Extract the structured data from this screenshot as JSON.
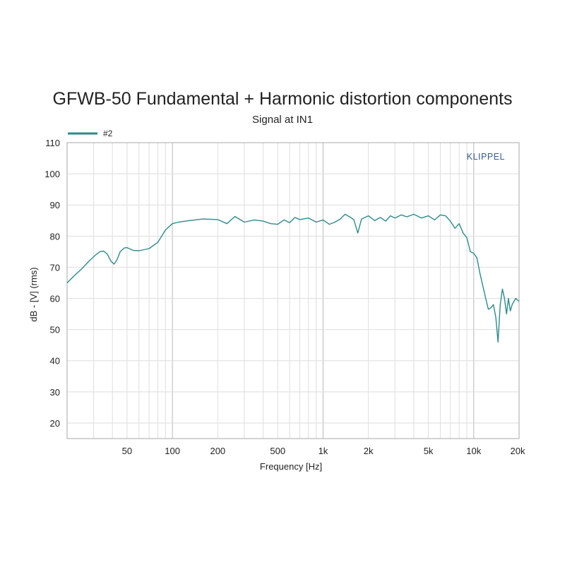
{
  "chart_data": {
    "type": "line",
    "title": "GFWB-50 Fundamental + Harmonic distortion components",
    "subtitle": "Signal at IN1",
    "brand": "KLIPPEL",
    "xlabel": "Frequency [Hz]",
    "ylabel": "dB - [V] (rms)",
    "xscale": "log",
    "xlim": [
      20,
      20000
    ],
    "ylim": [
      15,
      110
    ],
    "yticks": [
      20,
      30,
      40,
      50,
      60,
      70,
      80,
      90,
      100,
      110
    ],
    "xticks": [
      {
        "value": 50,
        "label": "50"
      },
      {
        "value": 100,
        "label": "100"
      },
      {
        "value": 200,
        "label": "200"
      },
      {
        "value": 500,
        "label": "500"
      },
      {
        "value": 1000,
        "label": "1k"
      },
      {
        "value": 2000,
        "label": "2k"
      },
      {
        "value": 5000,
        "label": "5k"
      },
      {
        "value": 10000,
        "label": "10k"
      },
      {
        "value": 20000,
        "label": "20k"
      }
    ],
    "grid": true,
    "legend_position": "top-left",
    "series": [
      {
        "name": "#2",
        "color": "#2e8b8b",
        "x": [
          20,
          22,
          25,
          28,
          31,
          33,
          35,
          37,
          39,
          41,
          43,
          45,
          48,
          50,
          55,
          60,
          70,
          80,
          90,
          100,
          110,
          130,
          160,
          200,
          230,
          260,
          300,
          350,
          400,
          450,
          500,
          550,
          600,
          650,
          700,
          800,
          900,
          1000,
          1100,
          1200,
          1300,
          1400,
          1500,
          1600,
          1700,
          1800,
          2000,
          2200,
          2400,
          2600,
          2800,
          3000,
          3300,
          3600,
          4000,
          4500,
          5000,
          5500,
          6000,
          6500,
          7000,
          7500,
          8000,
          8500,
          9000,
          9500,
          10000,
          10500,
          11000,
          11500,
          12000,
          12500,
          13000,
          13500,
          14000,
          14500,
          15000,
          15500,
          16000,
          16500,
          17000,
          17500,
          18000,
          19000,
          20000
        ],
        "y": [
          65,
          67,
          69.5,
          72,
          74,
          75,
          75.2,
          74.2,
          72,
          71,
          72.5,
          75,
          76.2,
          76.3,
          75.4,
          75.3,
          76,
          78,
          82,
          84,
          84.5,
          85,
          85.5,
          85.3,
          84,
          86.3,
          84.5,
          85.2,
          84.8,
          84,
          83.8,
          85.2,
          84.3,
          86,
          85.3,
          85.8,
          84.5,
          85.2,
          83.8,
          84.5,
          85.5,
          87,
          86.2,
          85.3,
          81,
          85.5,
          86.5,
          85,
          86,
          84.8,
          86.5,
          85.8,
          86.8,
          86.2,
          87,
          85.8,
          86.5,
          85.2,
          86.8,
          86.5,
          84.8,
          82.5,
          84,
          81,
          79.5,
          75,
          74.5,
          73,
          68,
          64,
          60,
          56.5,
          57,
          58,
          54,
          46,
          58,
          63,
          60,
          55,
          60,
          56,
          58,
          60,
          59
        ]
      }
    ]
  }
}
